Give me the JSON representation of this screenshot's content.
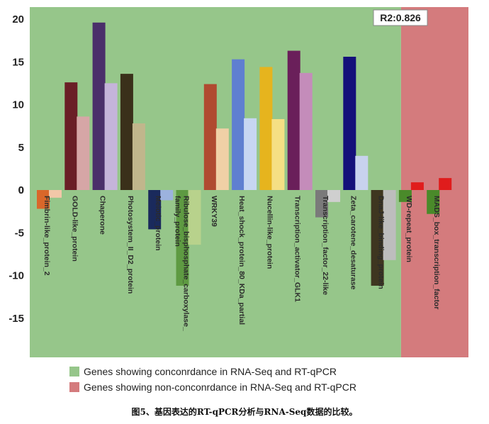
{
  "chart_data": {
    "type": "bar",
    "r2_label": "R2:0.826",
    "ylim": [
      -20,
      20
    ],
    "yticks": [
      -15,
      -10,
      -5,
      0,
      5,
      10,
      15,
      20
    ],
    "regions": [
      {
        "label": "Genes showing conconrdance in RNA-Seq and RT-qPCR",
        "color": "#96c68a",
        "from": 0,
        "to": 13
      },
      {
        "label": "Genes showing non-conconrdance in RNA-Seq and RT-qPCR",
        "color": "#d47b7d",
        "from": 13,
        "to": 15
      }
    ],
    "categories": [
      {
        "label": "Fimbrin-like_protein_2",
        "a": -2.2,
        "b": -0.9,
        "ca": "#d9672a",
        "cb": "#f2c7a8"
      },
      {
        "label": "GOLD-like_protein",
        "a": 12.6,
        "b": 8.6,
        "ca": "#6a1e26",
        "cb": "#d6a6a6"
      },
      {
        "label": "Chaperone",
        "a": 19.6,
        "b": 12.5,
        "ca": "#4a2f6a",
        "cb": "#c5b4da"
      },
      {
        "label": "Photosystem_II_D2_protein",
        "a": 13.6,
        "b": 7.8,
        "ca": "#3a301a",
        "cb": "#c1b68c"
      },
      {
        "label": "Meiotic_protein",
        "a": -4.6,
        "b": -1.2,
        "ca": "#1a2a5c",
        "cb": "#9cb2de"
      },
      {
        "label": "Ribulose_bisphosphate_carboxylase_family_protein",
        "a": -11.2,
        "b": -6.4,
        "ca": "#5e9a42",
        "cb": "#b8d28c"
      },
      {
        "label": "WRKY39",
        "a": 12.4,
        "b": 7.2,
        "ca": "#b04a30",
        "cb": "#f0d0a6"
      },
      {
        "label": "Heat_shock_protein_80_KDa_partial",
        "a": 15.3,
        "b": 8.4,
        "ca": "#5f7fd0",
        "cb": "#c7d6f2"
      },
      {
        "label": "Nucellin-like_protein",
        "a": 14.4,
        "b": 8.3,
        "ca": "#e6b41e",
        "cb": "#f5df84"
      },
      {
        "label": "Transcription_activator_GLK1",
        "a": 16.3,
        "b": 13.7,
        "ca": "#6a1f5a",
        "cb": "#c48cba"
      },
      {
        "label": "Transcription_factor_22-like",
        "a": -3.2,
        "b": -1.4,
        "ca": "#7a7a7a",
        "cb": "#cfcfcf"
      },
      {
        "label": "Zeta_carotene_desaturase",
        "a": 15.6,
        "b": 4.0,
        "ca": "#14107a",
        "cb": "#c8d2ee"
      },
      {
        "label": "DnaJ-like_binding_protein",
        "a": -11.2,
        "b": -8.2,
        "ca": "#3e3620",
        "cb": "#bdbdbd"
      },
      {
        "label": "WD-repeat_protein",
        "a": -1.4,
        "b": 0.9,
        "ca": "#4a8a2a",
        "cb": "#e01c1c"
      },
      {
        "label": "MADS_box_transcription_factor",
        "a": -2.8,
        "b": 1.4,
        "ca": "#4a8a2a",
        "cb": "#e01c1c"
      }
    ]
  },
  "caption": "图5、基因表达的RT-qPCR分析与RNA-Seq数据的比较。"
}
